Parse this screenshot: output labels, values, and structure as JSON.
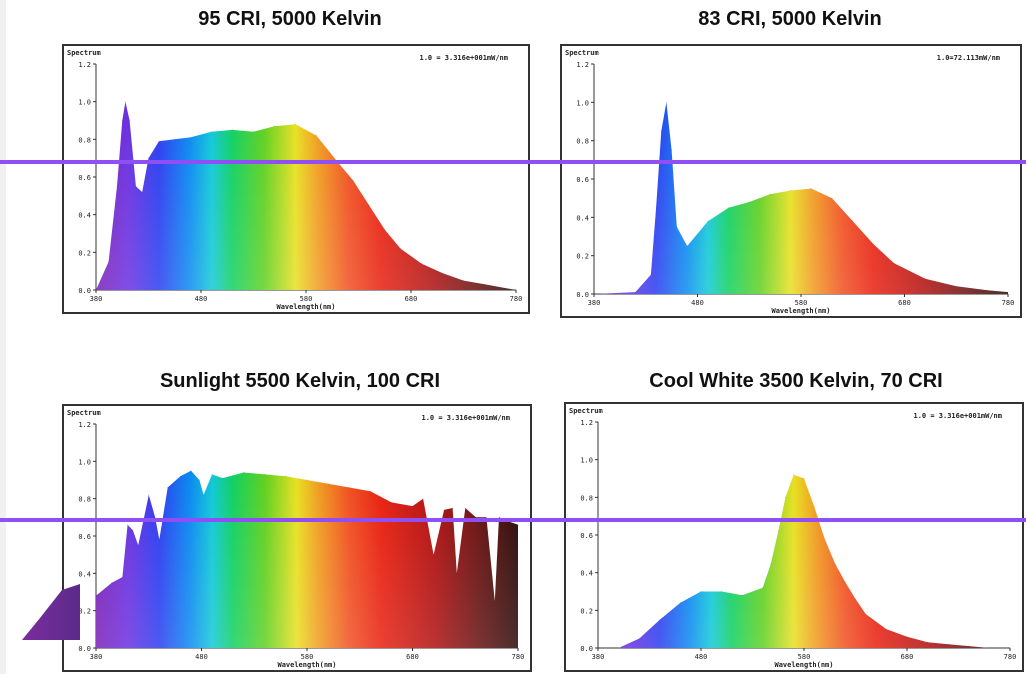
{
  "panels": [
    {
      "title": "95 CRI, 5000 Kelvin",
      "ylabel": "Spectrum",
      "xlabel": "Wavelength(nm)",
      "scale_note": "1.0 = 3.316e+001mW/nm",
      "chart_data": {
        "type": "area",
        "ylim": [
          0,
          1.2
        ],
        "yticks": [
          "0.0",
          "0.2",
          "0.4",
          "0.6",
          "0.8",
          "1.0",
          "1.2"
        ],
        "xlim": [
          380,
          780
        ],
        "xticks": [
          "380",
          "480",
          "580",
          "680",
          "780"
        ],
        "x": [
          380,
          392,
          400,
          405,
          408,
          412,
          418,
          424,
          430,
          440,
          455,
          470,
          490,
          510,
          530,
          550,
          570,
          590,
          610,
          625,
          640,
          655,
          670,
          690,
          710,
          730,
          750,
          770,
          780
        ],
        "y": [
          0.0,
          0.15,
          0.55,
          0.9,
          1.0,
          0.9,
          0.55,
          0.52,
          0.7,
          0.79,
          0.8,
          0.81,
          0.84,
          0.85,
          0.84,
          0.87,
          0.88,
          0.82,
          0.68,
          0.58,
          0.45,
          0.32,
          0.22,
          0.14,
          0.09,
          0.05,
          0.03,
          0.01,
          0.0
        ]
      }
    },
    {
      "title": "83 CRI, 5000 Kelvin",
      "ylabel": "Spectrum",
      "xlabel": "Wavelength(nm)",
      "scale_note": "1.0=72.113mW/nm",
      "chart_data": {
        "type": "area",
        "ylim": [
          0,
          1.2
        ],
        "yticks": [
          "0.0",
          "0.2",
          "0.4",
          "0.6",
          "0.8",
          "1.0",
          "1.2"
        ],
        "xlim": [
          380,
          780
        ],
        "xticks": [
          "380",
          "480",
          "580",
          "680",
          "780"
        ],
        "x": [
          380,
          420,
          435,
          440,
          445,
          450,
          455,
          460,
          470,
          490,
          510,
          530,
          550,
          570,
          590,
          610,
          630,
          650,
          670,
          700,
          730,
          760,
          780
        ],
        "y": [
          0.0,
          0.01,
          0.1,
          0.45,
          0.85,
          1.0,
          0.75,
          0.35,
          0.25,
          0.38,
          0.45,
          0.48,
          0.52,
          0.54,
          0.55,
          0.5,
          0.38,
          0.26,
          0.16,
          0.08,
          0.04,
          0.02,
          0.01
        ]
      }
    },
    {
      "title": "Sunlight 5500 Kelvin, 100 CRI",
      "ylabel": "Spectrum",
      "xlabel": "Wavelength(nm)",
      "scale_note": "1.0 = 3.316e+001mW/nm",
      "chart_data": {
        "type": "area",
        "ylim": [
          0,
          1.2
        ],
        "yticks": [
          "0.0",
          "0.2",
          "0.4",
          "0.6",
          "0.8",
          "1.0",
          "1.2"
        ],
        "xlim": [
          380,
          780
        ],
        "xticks": [
          "380",
          "480",
          "580",
          "680",
          "780"
        ],
        "x": [
          380,
          395,
          405,
          410,
          415,
          420,
          430,
          436,
          440,
          448,
          460,
          470,
          478,
          482,
          490,
          500,
          520,
          540,
          560,
          580,
          600,
          620,
          640,
          660,
          680,
          690,
          700,
          710,
          718,
          722,
          730,
          740,
          750,
          758,
          762,
          770,
          780
        ],
        "y": [
          0.28,
          0.35,
          0.38,
          0.66,
          0.63,
          0.55,
          0.82,
          0.7,
          0.58,
          0.86,
          0.92,
          0.95,
          0.9,
          0.82,
          0.93,
          0.91,
          0.94,
          0.93,
          0.92,
          0.9,
          0.88,
          0.86,
          0.84,
          0.78,
          0.76,
          0.8,
          0.5,
          0.74,
          0.75,
          0.4,
          0.75,
          0.7,
          0.7,
          0.25,
          0.7,
          0.68,
          0.66
        ]
      }
    },
    {
      "title": "Cool White 3500 Kelvin, 70 CRI",
      "ylabel": "Spectrum",
      "xlabel": "Wavelength(nm)",
      "scale_note": "1.0 = 3.316e+001mW/nm",
      "chart_data": {
        "type": "area",
        "ylim": [
          0,
          1.2
        ],
        "yticks": [
          "0.0",
          "0.2",
          "0.4",
          "0.6",
          "0.8",
          "1.0",
          "1.2"
        ],
        "xlim": [
          380,
          780
        ],
        "xticks": [
          "380",
          "480",
          "580",
          "680",
          "780"
        ],
        "x": [
          380,
          400,
          420,
          440,
          460,
          480,
          500,
          520,
          540,
          548,
          555,
          562,
          570,
          580,
          590,
          600,
          610,
          620,
          630,
          640,
          660,
          680,
          700,
          720,
          740,
          760,
          780
        ],
        "y": [
          0.0,
          0.0,
          0.05,
          0.15,
          0.24,
          0.3,
          0.3,
          0.28,
          0.32,
          0.45,
          0.62,
          0.8,
          0.92,
          0.9,
          0.75,
          0.58,
          0.45,
          0.35,
          0.26,
          0.18,
          0.1,
          0.06,
          0.03,
          0.02,
          0.01,
          0.0,
          0.0
        ]
      }
    }
  ]
}
